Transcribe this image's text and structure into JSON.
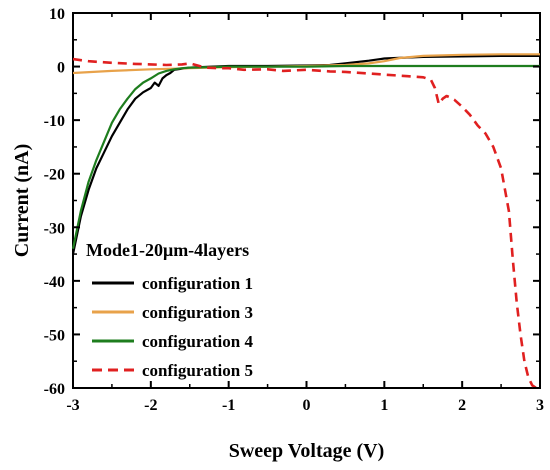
{
  "chart_data": {
    "type": "line",
    "xlabel": "Sweep Voltage (V)",
    "ylabel": "Current (nA)",
    "xlim": [
      -3,
      3
    ],
    "ylim": [
      -60,
      10
    ],
    "xticks": [
      -3,
      -2,
      -1,
      0,
      1,
      2,
      3
    ],
    "yticks": [
      10,
      0,
      -10,
      -20,
      -30,
      -40,
      -50,
      -60
    ],
    "xtick_labels": [
      "-3",
      "-2",
      "-1",
      "0",
      "1",
      "2",
      "3"
    ],
    "ytick_labels": [
      "10",
      "0",
      "-10",
      "-20",
      "-30",
      "-40",
      "-50",
      "-60"
    ],
    "grid": false,
    "legend_title": "Mode1-20μm-4layers",
    "legend_position": "lower-left",
    "series": [
      {
        "name": "configuration 1",
        "color": "#000000",
        "dash": "solid",
        "x": [
          -3.0,
          -2.9,
          -2.8,
          -2.7,
          -2.6,
          -2.5,
          -2.4,
          -2.3,
          -2.2,
          -2.1,
          -2.0,
          -1.95,
          -1.9,
          -1.85,
          -1.8,
          -1.75,
          -1.7,
          -1.6,
          -1.5,
          -1.2,
          -1.0,
          -0.5,
          0.0,
          0.3,
          0.5,
          0.8,
          1.0,
          1.5,
          2.0,
          2.5,
          3.0
        ],
        "y": [
          -35.0,
          -28.0,
          -23.0,
          -19.0,
          -16.0,
          -13.0,
          -10.5,
          -8.0,
          -6.0,
          -4.8,
          -4.0,
          -3.0,
          -3.6,
          -2.2,
          -1.6,
          -1.2,
          -0.6,
          -0.4,
          -0.2,
          0.0,
          0.1,
          0.1,
          0.2,
          0.3,
          0.6,
          1.1,
          1.5,
          1.8,
          1.9,
          2.0,
          2.0
        ]
      },
      {
        "name": "configuration 3",
        "color": "#E8A24A",
        "dash": "solid",
        "x": [
          -3.0,
          -2.5,
          -2.0,
          -1.5,
          -1.0,
          -0.5,
          0.0,
          0.5,
          0.8,
          1.0,
          1.2,
          1.5,
          2.0,
          2.5,
          3.0
        ],
        "y": [
          -1.2,
          -0.8,
          -0.5,
          -0.3,
          -0.1,
          0.0,
          0.1,
          0.3,
          0.6,
          1.0,
          1.6,
          2.0,
          2.2,
          2.3,
          2.3
        ]
      },
      {
        "name": "configuration 4",
        "color": "#1E7D1E",
        "dash": "solid",
        "x": [
          -3.0,
          -2.9,
          -2.8,
          -2.7,
          -2.6,
          -2.5,
          -2.4,
          -2.3,
          -2.2,
          -2.1,
          -2.0,
          -1.9,
          -1.8,
          -1.7,
          -1.6,
          -1.5,
          -1.0,
          -0.5,
          0.0,
          0.5,
          1.0,
          1.5,
          2.0,
          2.5,
          3.0
        ],
        "y": [
          -34.0,
          -27.0,
          -21.5,
          -17.5,
          -14.0,
          -10.5,
          -8.0,
          -6.0,
          -4.2,
          -3.0,
          -2.2,
          -1.3,
          -0.8,
          -0.5,
          -0.3,
          -0.2,
          0.0,
          0.0,
          0.0,
          0.1,
          0.1,
          0.1,
          0.1,
          0.1,
          0.1
        ]
      },
      {
        "name": "configuration 5",
        "color": "#E02020",
        "dash": "dashed",
        "x": [
          -3.0,
          -2.8,
          -2.5,
          -2.2,
          -2.0,
          -1.8,
          -1.6,
          -1.5,
          -1.3,
          -1.1,
          -1.0,
          -0.8,
          -0.5,
          -0.3,
          0.0,
          0.3,
          0.5,
          1.0,
          1.3,
          1.5,
          1.6,
          1.65,
          1.7,
          1.75,
          1.8,
          1.85,
          1.9,
          2.0,
          2.1,
          2.2,
          2.3,
          2.4,
          2.5,
          2.55,
          2.6,
          2.65,
          2.7,
          2.75,
          2.8,
          2.85,
          2.9,
          2.95
        ],
        "y": [
          1.4,
          1.0,
          0.7,
          0.5,
          0.4,
          0.3,
          0.4,
          0.6,
          -0.2,
          -0.3,
          -0.3,
          -0.6,
          -0.5,
          -0.8,
          -0.6,
          -0.9,
          -1.0,
          -1.5,
          -1.8,
          -2.0,
          -2.5,
          -4.0,
          -7.0,
          -6.0,
          -5.5,
          -5.8,
          -6.2,
          -7.5,
          -9.0,
          -11.0,
          -12.5,
          -15.0,
          -19.0,
          -23.0,
          -27.0,
          -36.0,
          -44.0,
          -50.0,
          -55.0,
          -58.0,
          -59.5,
          -60.0
        ]
      }
    ]
  }
}
